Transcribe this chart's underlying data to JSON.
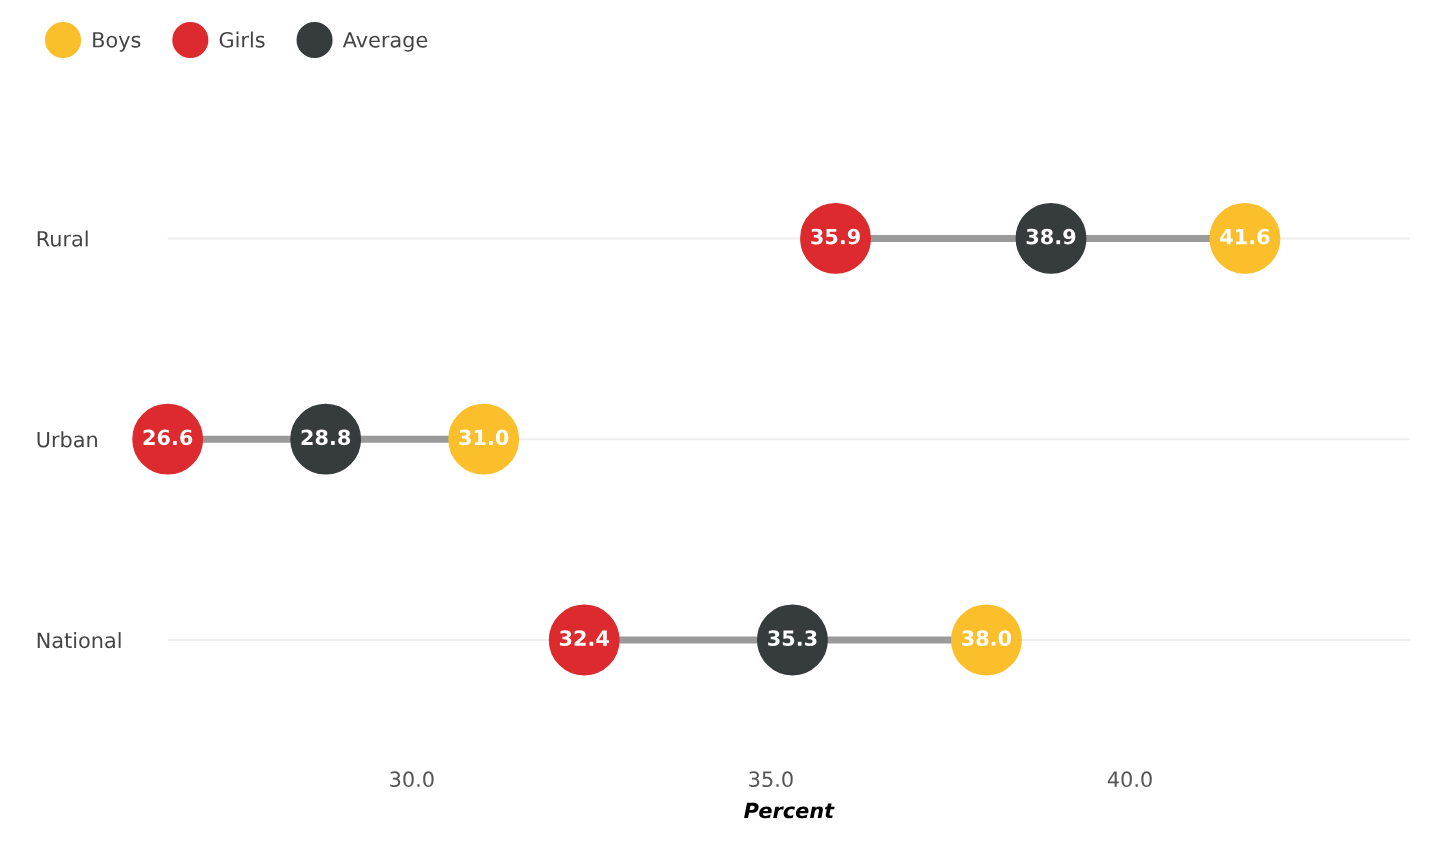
{
  "chart_data": {
    "type": "scatter",
    "orientation": "horizontal",
    "categories": [
      "Rural",
      "Urban",
      "National"
    ],
    "series": [
      {
        "name": "Boys",
        "color": "#fbbf2c",
        "values": [
          41.6,
          31.0,
          38.0
        ],
        "value_labels": [
          "41.6",
          "31.0",
          "38.0"
        ]
      },
      {
        "name": "Girls",
        "color": "#dc2a2e",
        "values": [
          35.9,
          26.6,
          32.4
        ]
      },
      {
        "name": "Average",
        "color": "#363b3b",
        "values": [
          38.9,
          28.8,
          35.3
        ]
      }
    ],
    "xlabel": "Percent",
    "xlim": [
      26.6,
      43.9
    ],
    "xticks": [
      {
        "value": 30,
        "label": "30.0"
      },
      {
        "value": 35,
        "label": "35.0"
      },
      {
        "value": 40,
        "label": "40.0"
      }
    ],
    "data_labels": true,
    "grid": "y",
    "legend": "top left",
    "marker": "circle"
  }
}
